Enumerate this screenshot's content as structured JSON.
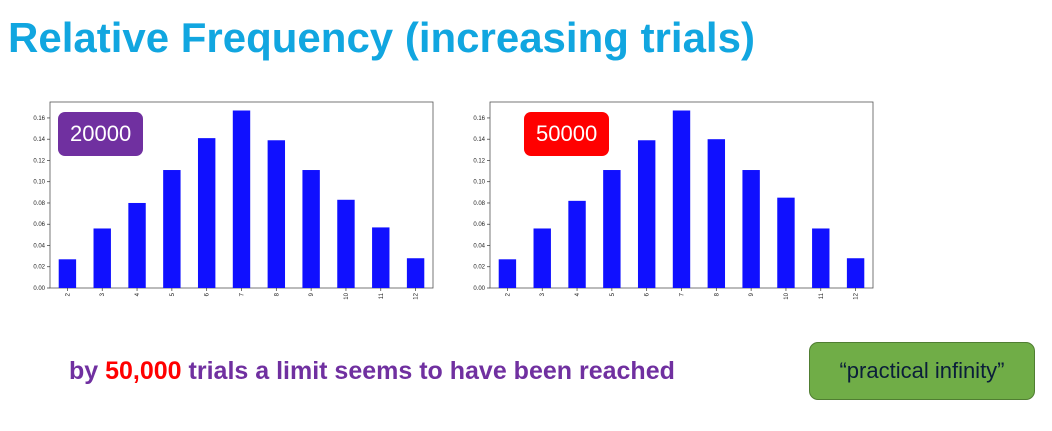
{
  "page": {
    "title": "Relative Frequency (increasing trials)"
  },
  "caption": {
    "prefix": "by ",
    "highlight": "50,000",
    "suffix": " trials a limit seems to have been reached"
  },
  "note": {
    "text": "“practical infinity”"
  },
  "colors": {
    "title": "#11a6e0",
    "bar": "#1010ff",
    "caption": "#7030a0",
    "caption_highlight": "#ff0000",
    "badge_left": "#7030a0",
    "badge_right": "#ff0000",
    "note_fill": "#70ad47",
    "note_text": "#0b1e3a"
  },
  "chart_data": [
    {
      "type": "bar",
      "badge": "20000",
      "categories": [
        "2",
        "3",
        "4",
        "5",
        "6",
        "7",
        "8",
        "9",
        "10",
        "11",
        "12"
      ],
      "values": [
        0.027,
        0.056,
        0.08,
        0.111,
        0.141,
        0.167,
        0.139,
        0.111,
        0.083,
        0.057,
        0.028
      ],
      "yticks": [
        "0.00",
        "0.02",
        "0.04",
        "0.06",
        "0.08",
        "0.10",
        "0.12",
        "0.14",
        "0.16"
      ],
      "ylim": [
        0,
        0.175
      ],
      "grid": false,
      "title": "",
      "xlabel": "",
      "ylabel": ""
    },
    {
      "type": "bar",
      "badge": "50000",
      "categories": [
        "2",
        "3",
        "4",
        "5",
        "6",
        "7",
        "8",
        "9",
        "10",
        "11",
        "12"
      ],
      "values": [
        0.027,
        0.056,
        0.082,
        0.111,
        0.139,
        0.167,
        0.14,
        0.111,
        0.085,
        0.056,
        0.028
      ],
      "yticks": [
        "0.00",
        "0.02",
        "0.04",
        "0.06",
        "0.08",
        "0.10",
        "0.12",
        "0.14",
        "0.16"
      ],
      "ylim": [
        0,
        0.175
      ],
      "grid": false,
      "title": "",
      "xlabel": "",
      "ylabel": ""
    }
  ]
}
